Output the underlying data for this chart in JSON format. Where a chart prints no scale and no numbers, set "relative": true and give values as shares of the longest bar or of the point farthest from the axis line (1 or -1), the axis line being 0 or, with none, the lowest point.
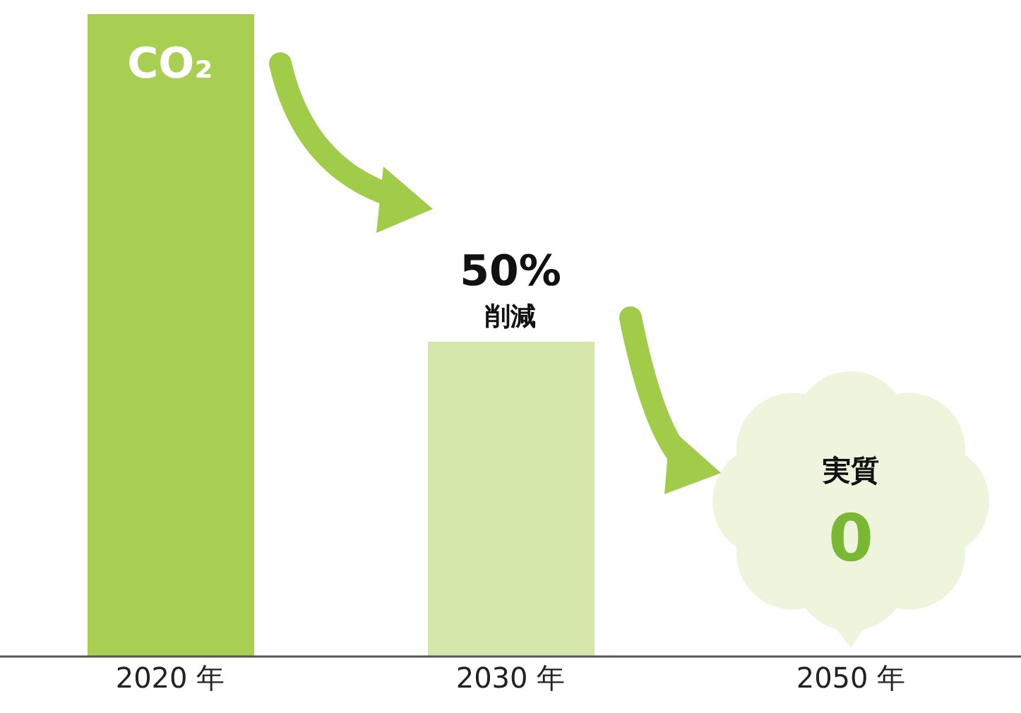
{
  "chart_data": {
    "type": "bar",
    "relative": true,
    "categories": [
      "2020 年",
      "2030 年",
      "2050 年"
    ],
    "values": [
      1,
      0.49,
      0
    ],
    "colors": [
      "#a8cf52",
      "#d6e7ab",
      "#eef5dc"
    ],
    "annotations": [
      {
        "text": "CO₂",
        "x": "2020 年",
        "y": 1
      },
      {
        "text": "50%",
        "x": "2030 年",
        "y": 0.49
      },
      {
        "text": "削減",
        "x": "2030 年",
        "y": 0.49
      },
      "実質",
      "0"
    ]
  }
}
